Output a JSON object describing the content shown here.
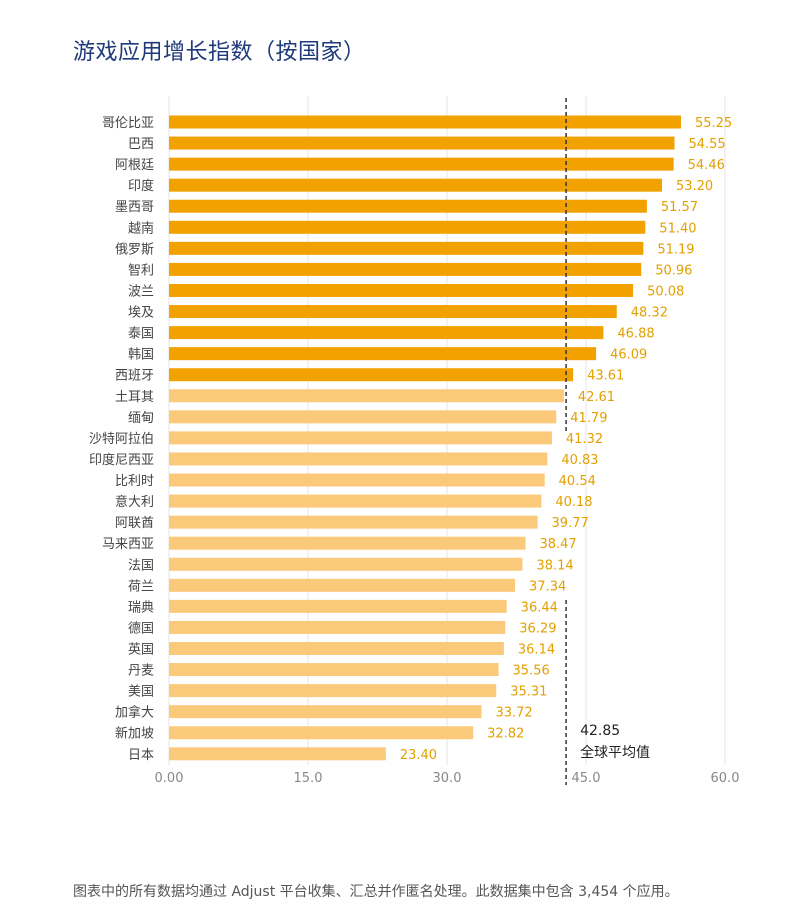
{
  "title": "游戏应用增长指数（按国家）",
  "footnote": "图表中的所有数据均通过 Adjust 平台收集、汇总并作匿名处理。此数据集中包含 3,454 个应用。",
  "colors": {
    "above_average": "#f2a200",
    "below_average": "#fbc97a",
    "value_label": "#e3a000",
    "average_line": "#333333",
    "grid": "#e6e6e6",
    "axis_text": "#888888",
    "category_text": "#444444"
  },
  "chart_data": {
    "type": "bar",
    "orientation": "horizontal",
    "categories": [
      "哥伦比亚",
      "巴西",
      "阿根廷",
      "印度",
      "墨西哥",
      "越南",
      "俄罗斯",
      "智利",
      "波兰",
      "埃及",
      "泰国",
      "韩国",
      "西班牙",
      "土耳其",
      "缅甸",
      "沙特阿拉伯",
      "印度尼西亚",
      "比利时",
      "意大利",
      "阿联酋",
      "马来西亚",
      "法国",
      "荷兰",
      "瑞典",
      "德国",
      "英国",
      "丹麦",
      "美国",
      "加拿大",
      "新加坡",
      "日本"
    ],
    "values": [
      55.25,
      54.55,
      54.46,
      53.2,
      51.57,
      51.4,
      51.19,
      50.96,
      50.08,
      48.32,
      46.88,
      46.09,
      43.61,
      42.61,
      41.79,
      41.32,
      40.83,
      40.54,
      40.18,
      39.77,
      38.47,
      38.14,
      37.34,
      36.44,
      36.29,
      36.14,
      35.56,
      35.31,
      33.72,
      32.82,
      23.4
    ],
    "value_labels": [
      "55.25",
      "54.55",
      "54.46",
      "53.20",
      "51.57",
      "51.40",
      "51.19",
      "50.96",
      "50.08",
      "48.32",
      "46.88",
      "46.09",
      "43.61",
      "42.61",
      "41.79",
      "41.32",
      "40.83",
      "40.54",
      "40.18",
      "39.77",
      "38.47",
      "38.14",
      "37.34",
      "36.44",
      "36.29",
      "36.14",
      "35.56",
      "35.31",
      "33.72",
      "32.82",
      "23.40"
    ],
    "xlim": [
      0,
      60
    ],
    "x_ticks": [
      "0.00",
      "15.0",
      "30.0",
      "45.0",
      "60.0"
    ],
    "x_tick_values": [
      0,
      15,
      30,
      45,
      60
    ],
    "reference_line": {
      "value": 42.85,
      "value_label": "42.85",
      "label": "全球平均值"
    },
    "grid": true
  }
}
